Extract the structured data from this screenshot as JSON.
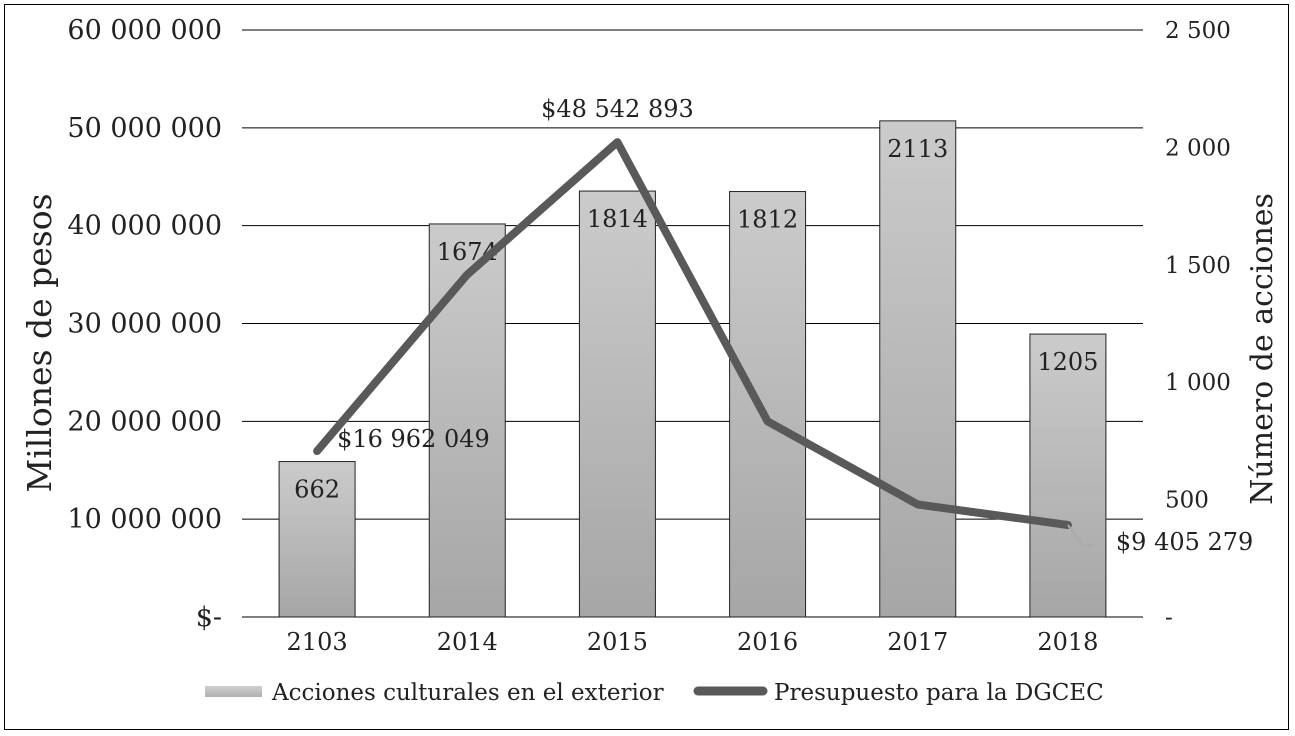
{
  "chart_data": {
    "type": "bar",
    "categories": [
      "2103",
      "2014",
      "2015",
      "2016",
      "2017",
      "2018"
    ],
    "series": [
      {
        "name": "Acciones culturales en el exterior",
        "type": "bar",
        "axis": "right",
        "values": [
          662,
          1674,
          1814,
          1812,
          2113,
          1205
        ],
        "labels": [
          "662",
          "1674",
          "1814",
          "1812",
          "2113",
          "1205"
        ],
        "color": "#bdbdbd"
      },
      {
        "name": "Presupuesto para la DGCEC",
        "type": "line",
        "axis": "left",
        "values": [
          16962049,
          35000000,
          48542893,
          20000000,
          11500000,
          9405279
        ],
        "labels": [
          "$16 962 049",
          "",
          "$48 542 893",
          "",
          "",
          "$9 405 279"
        ],
        "color": "#595959"
      }
    ],
    "ylabel": "Millones de pesos",
    "y2label": "Número de acciones",
    "ylim": [
      0,
      60000000
    ],
    "y2lim": [
      0,
      2500
    ],
    "yticks": [
      "$-",
      "10 000 000",
      "20 000 000",
      "30 000 000",
      "40 000 000",
      "50 000 000",
      "60 000 000"
    ],
    "y2ticks": [
      "-",
      "500",
      "1 000",
      "1 500",
      "2 000",
      "2 500"
    ],
    "grid": true,
    "legend": "bottom"
  }
}
